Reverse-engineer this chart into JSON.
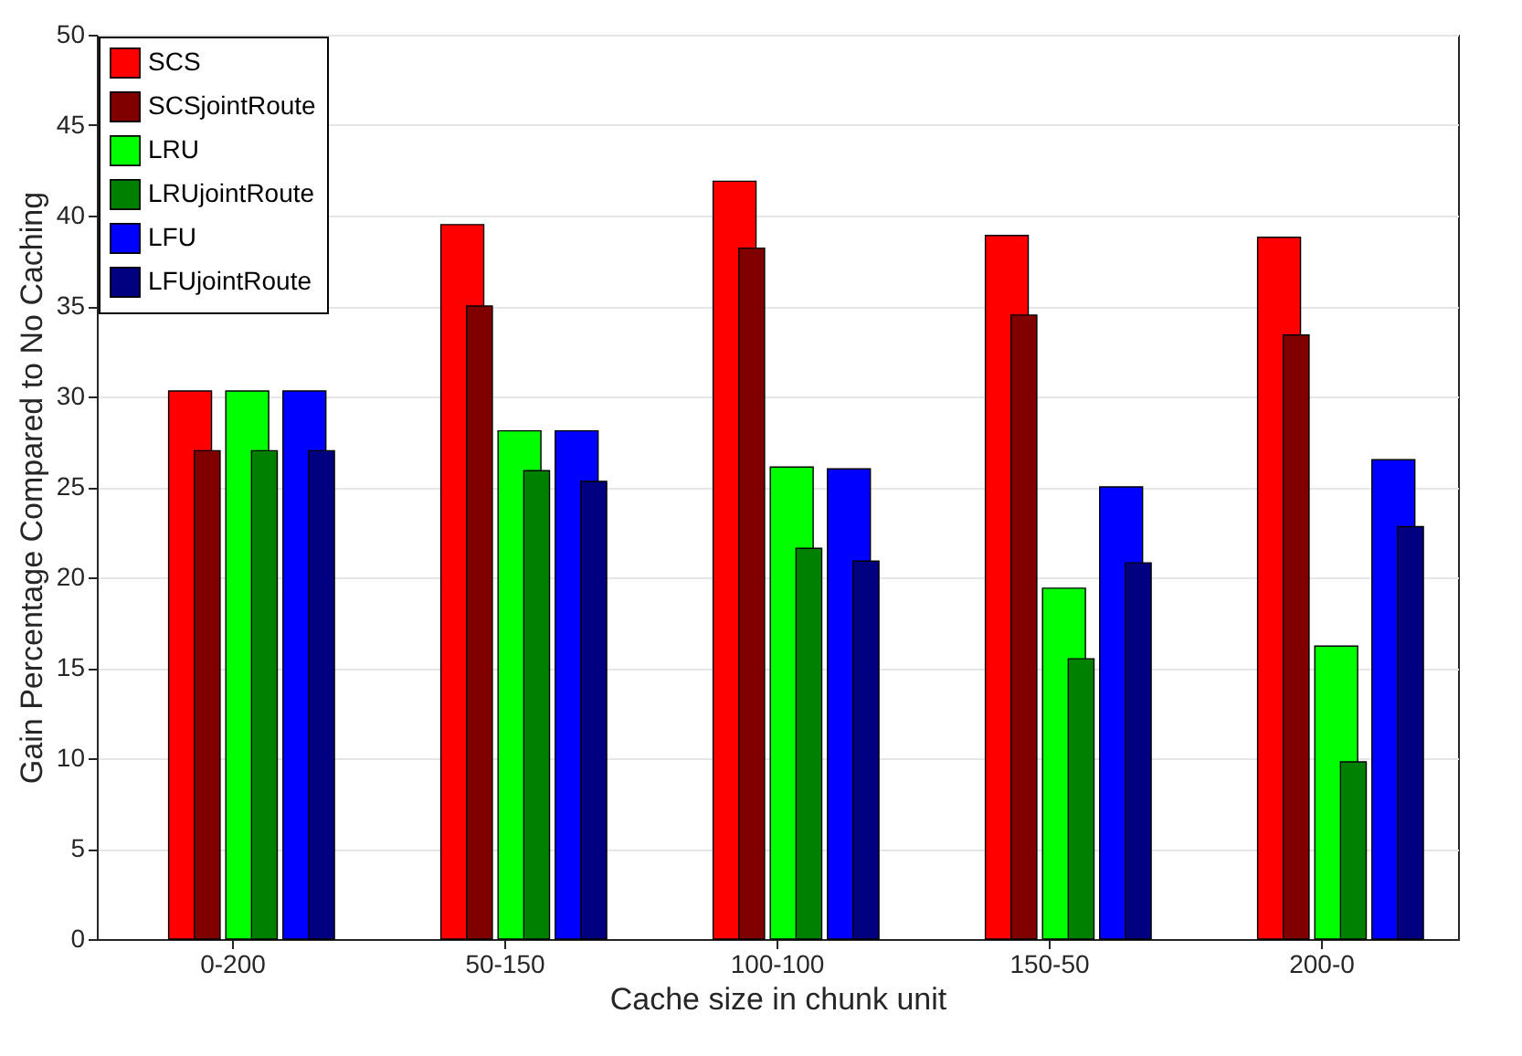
{
  "chart_data": {
    "type": "bar",
    "xlabel": "Cache size in chunk unit",
    "ylabel": "Gain Percentage Compared to No Caching",
    "categories": [
      "0-200",
      "50-150",
      "100-100",
      "150-50",
      "200-0"
    ],
    "series": [
      {
        "name": "SCS",
        "color": "#ff0000",
        "values": [
          30.3,
          39.5,
          41.9,
          38.9,
          38.8
        ]
      },
      {
        "name": "SCSjointRoute",
        "color": "#800000",
        "values": [
          27.0,
          35.0,
          38.2,
          34.5,
          33.4
        ]
      },
      {
        "name": "LRU",
        "color": "#00ff00",
        "values": [
          30.3,
          28.1,
          26.1,
          19.4,
          16.2
        ]
      },
      {
        "name": "LRUjointRoute",
        "color": "#008000",
        "values": [
          27.0,
          25.9,
          21.6,
          15.5,
          9.8
        ]
      },
      {
        "name": "LFU",
        "color": "#0000ff",
        "values": [
          30.3,
          28.1,
          26.0,
          25.0,
          26.5
        ]
      },
      {
        "name": "LFUjointRoute",
        "color": "#000080",
        "values": [
          27.0,
          25.3,
          20.9,
          20.8,
          22.8
        ]
      }
    ],
    "ylim": [
      0,
      50
    ],
    "yticks": [
      0,
      5,
      10,
      15,
      20,
      25,
      30,
      35,
      40,
      45,
      50
    ],
    "grid": "y",
    "legend": "top left"
  }
}
